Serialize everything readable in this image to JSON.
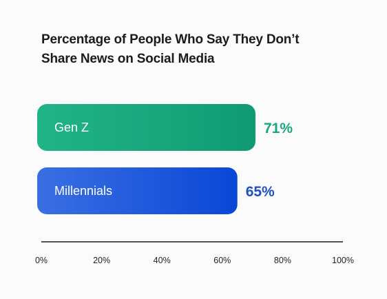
{
  "chart_data": {
    "type": "bar",
    "orientation": "horizontal",
    "title_lines": [
      "Percentage of People Who Say They Don’t",
      "Share News on Social Media"
    ],
    "categories": [
      "Gen Z",
      "Millennials"
    ],
    "values": [
      71,
      65
    ],
    "value_labels": [
      "71%",
      "65%"
    ],
    "xlim": [
      0,
      100
    ],
    "xticks": [
      0,
      20,
      40,
      60,
      80,
      100
    ],
    "xtick_labels": [
      "0%",
      "20%",
      "40%",
      "60%",
      "80%",
      "100%"
    ],
    "grid": false,
    "colors": {
      "Gen Z": {
        "start": "#21b487",
        "end": "#109b72",
        "label": "#18a67c"
      },
      "Millennials": {
        "start": "#3a6fe3",
        "end": "#0a47d6",
        "label": "#1f4fc4"
      }
    }
  }
}
